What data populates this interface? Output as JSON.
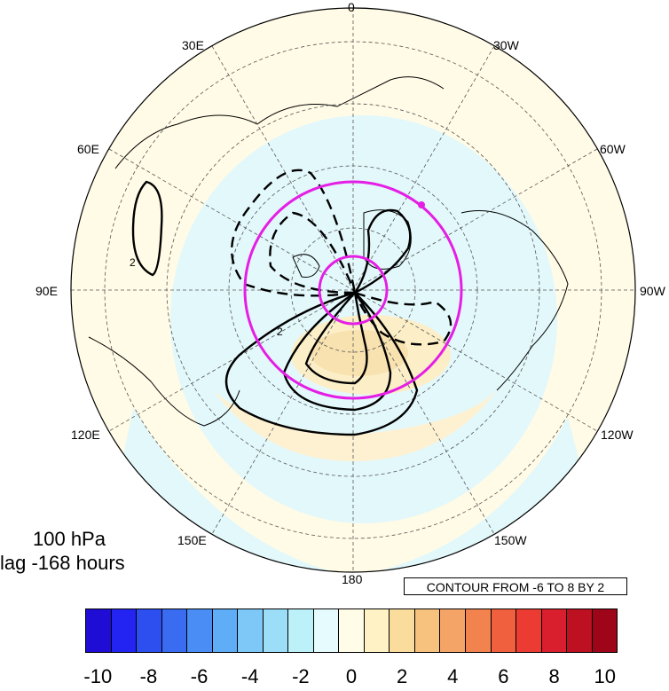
{
  "map": {
    "projection": "north polar stereographic",
    "longitude_labels": [
      "0",
      "30W",
      "60W",
      "90W",
      "120W",
      "150W",
      "180",
      "150E",
      "120E",
      "90E",
      "60E",
      "30E"
    ]
  },
  "annotations": {
    "level": "100 hPa",
    "lag": "lag -168 hours",
    "contour_info": "CONTOUR FROM -6 TO 8 BY 2"
  },
  "contour_labels": [
    "2",
    "2"
  ],
  "colorbar": {
    "colors": [
      "#1f0dd6",
      "#2424f2",
      "#2e4ff0",
      "#3a6cf2",
      "#4a8ef5",
      "#5fadf7",
      "#7dc8f7",
      "#9cddf7",
      "#bcf1fa",
      "#e6fbfd",
      "#fffde8",
      "#fff2c4",
      "#fadd9c",
      "#f7c27d",
      "#f5a468",
      "#f2834f",
      "#f05f3e",
      "#eb3b32",
      "#d91e2d",
      "#bd1020",
      "#9e0518"
    ],
    "labels": [
      "-10",
      "-8",
      "-6",
      "-4",
      "-2",
      "0",
      "2",
      "4",
      "6",
      "8",
      "10"
    ]
  },
  "chart_data": {
    "type": "contour",
    "variable_shading_range": [
      -10,
      10
    ],
    "contour_range": [
      -6,
      8
    ],
    "contour_interval": 2,
    "level": "100 hPa",
    "lag": "-168 hours"
  }
}
